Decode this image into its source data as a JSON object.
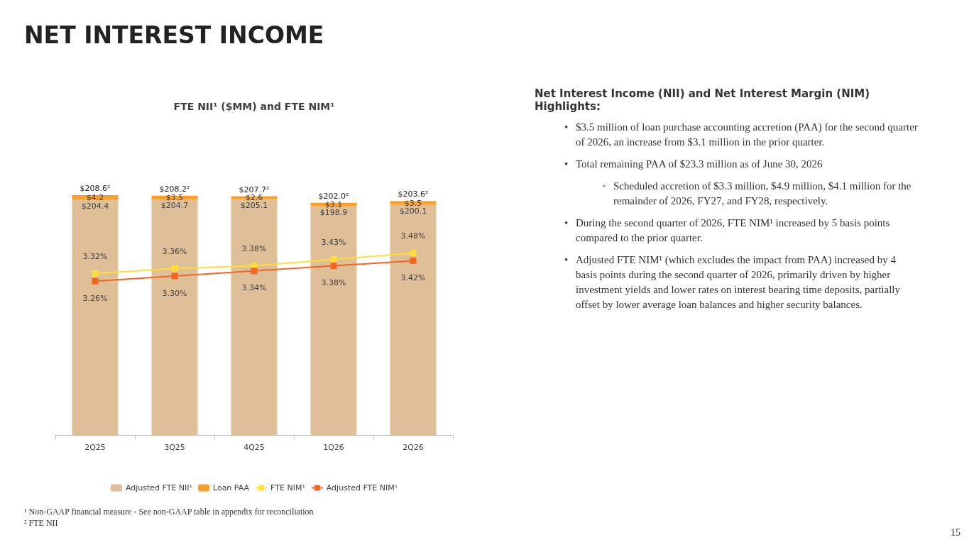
{
  "chart_data": {
    "type": "bar",
    "title": "NET INTEREST INCOME",
    "subtitle": "FTE NII¹ ($MM) and FTE NIM¹",
    "categories": [
      "2Q25",
      "3Q25",
      "4Q25",
      "1Q26",
      "2Q26"
    ],
    "stacked": true,
    "series": [
      {
        "name": "Adjusted FTE NII¹",
        "color": "#dfbf98",
        "values": [
          204.4,
          204.7,
          205.1,
          198.9,
          200.1
        ],
        "value_labels": [
          "$204.4",
          "$204.7",
          "$205.1",
          "$198.9",
          "$200.1"
        ]
      },
      {
        "name": "Loan PAA",
        "color": "#f7a02c",
        "values": [
          4.2,
          3.5,
          2.6,
          3.1,
          3.5
        ],
        "value_labels": [
          "$4.2",
          "$3.5",
          "$2.6",
          "$3.1",
          "$3.5"
        ]
      },
      {
        "name": "FTE NIM¹",
        "type": "line",
        "axis": "y2",
        "color": "#ffde3b",
        "values": [
          3.32,
          3.36,
          3.38,
          3.43,
          3.48
        ],
        "value_labels": [
          "3.32%",
          "3.36%",
          "3.38%",
          "3.43%",
          "3.48%"
        ]
      },
      {
        "name": "Adjusted FTE NIM¹",
        "type": "line",
        "axis": "y2",
        "color": "#f26522",
        "values": [
          3.26,
          3.3,
          3.34,
          3.38,
          3.42
        ],
        "value_labels": [
          "3.26%",
          "3.30%",
          "3.34%",
          "3.38%",
          "3.42%"
        ]
      }
    ],
    "totals": [
      "$208.6²",
      "$208.2²",
      "$207.7²",
      "$202.0²",
      "$203.6²"
    ],
    "tick_labels": "x",
    "grid": false,
    "legend": "bottom",
    "marker": "square",
    "annotations": [
      "Net Interest Income (NII) and Net Interest Margin (NIM) Highlights:",
      "• $3.5 million of loan purchase accounting accretion (PAA) for the second quarter of 2026, an increase from $3.1 million in the prior quarter.",
      "• Total remaining PAA of $23.3 million as of June 30, 2026",
      "◦ Scheduled accretion of $3.3 million, $4.9 million, $4.1 million for the remainder of 2026, FY27, and FY28, respectively.",
      "• During the second quarter of 2026, FTE NIM¹ increased by 5 basis points compared to the prior quarter.",
      "• Adjusted FTE NIM¹ (which excludes the impact from PAA) increased by 4 basis points during the second quarter of 2026, primarily driven by  higher investment yields and lower rates on interest bearing time deposits, partially offset by lower average loan balances and higher security balances.",
      "¹ Non-GAAP financial measure - See non-GAAP table in appendix for reconciliation",
      "² FTE NII",
      "15"
    ]
  }
}
